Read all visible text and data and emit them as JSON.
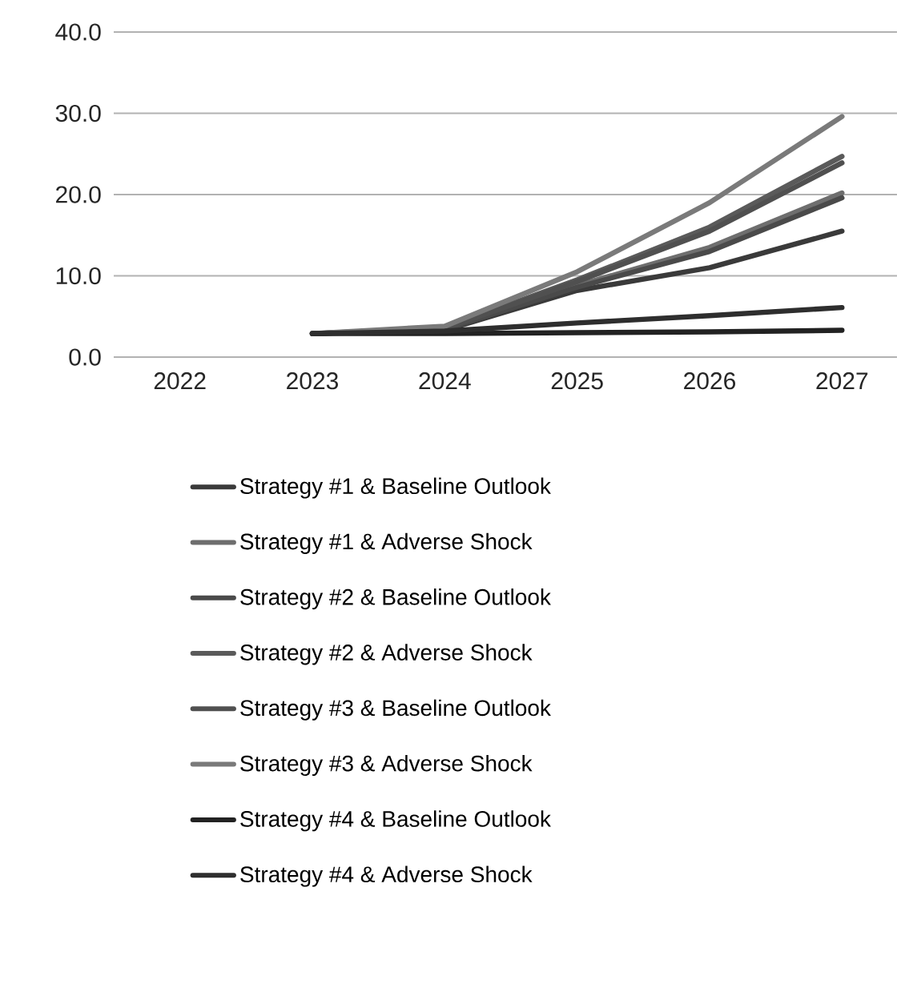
{
  "chart_data": {
    "type": "line",
    "categories": [
      "2022",
      "2023",
      "2024",
      "2025",
      "2026",
      "2027"
    ],
    "ylim": [
      0,
      40
    ],
    "yticks": [
      {
        "value": 0,
        "label": "0.0"
      },
      {
        "value": 10,
        "label": "10.0"
      },
      {
        "value": 20,
        "label": "20.0"
      },
      {
        "value": 30,
        "label": "30.0"
      },
      {
        "value": 40,
        "label": "40.0"
      }
    ],
    "grid": "y",
    "legend": "bottom",
    "marker": "none",
    "line_style": "solid",
    "series": [
      {
        "name": "Strategy #1 & Baseline Outlook",
        "color": "#3a3a3a",
        "values": [
          null,
          2.9,
          3.3,
          8.2,
          11.0,
          15.5
        ]
      },
      {
        "name": "Strategy #1 & Adverse Shock",
        "color": "#6e6e6e",
        "values": [
          null,
          2.9,
          3.4,
          8.8,
          13.5,
          20.2
        ]
      },
      {
        "name": "Strategy #2 & Baseline Outlook",
        "color": "#4a4a4a",
        "values": [
          null,
          2.9,
          3.4,
          8.6,
          13.0,
          19.6
        ]
      },
      {
        "name": "Strategy #2 & Adverse Shock",
        "color": "#5a5a5a",
        "values": [
          null,
          2.9,
          3.6,
          9.5,
          16.0,
          24.7
        ]
      },
      {
        "name": "Strategy #3 & Baseline Outlook",
        "color": "#505050",
        "values": [
          null,
          2.9,
          3.5,
          9.3,
          15.5,
          23.9
        ]
      },
      {
        "name": "Strategy #3 & Adverse Shock",
        "color": "#7a7a7a",
        "values": [
          null,
          2.9,
          3.8,
          10.5,
          19.0,
          29.6
        ]
      },
      {
        "name": "Strategy #4 & Baseline Outlook",
        "color": "#222222",
        "values": [
          null,
          2.9,
          2.9,
          3.0,
          3.1,
          3.3
        ]
      },
      {
        "name": "Strategy #4 & Adverse Shock",
        "color": "#2e2e2e",
        "values": [
          null,
          2.9,
          3.2,
          4.2,
          5.1,
          6.1
        ]
      }
    ]
  }
}
